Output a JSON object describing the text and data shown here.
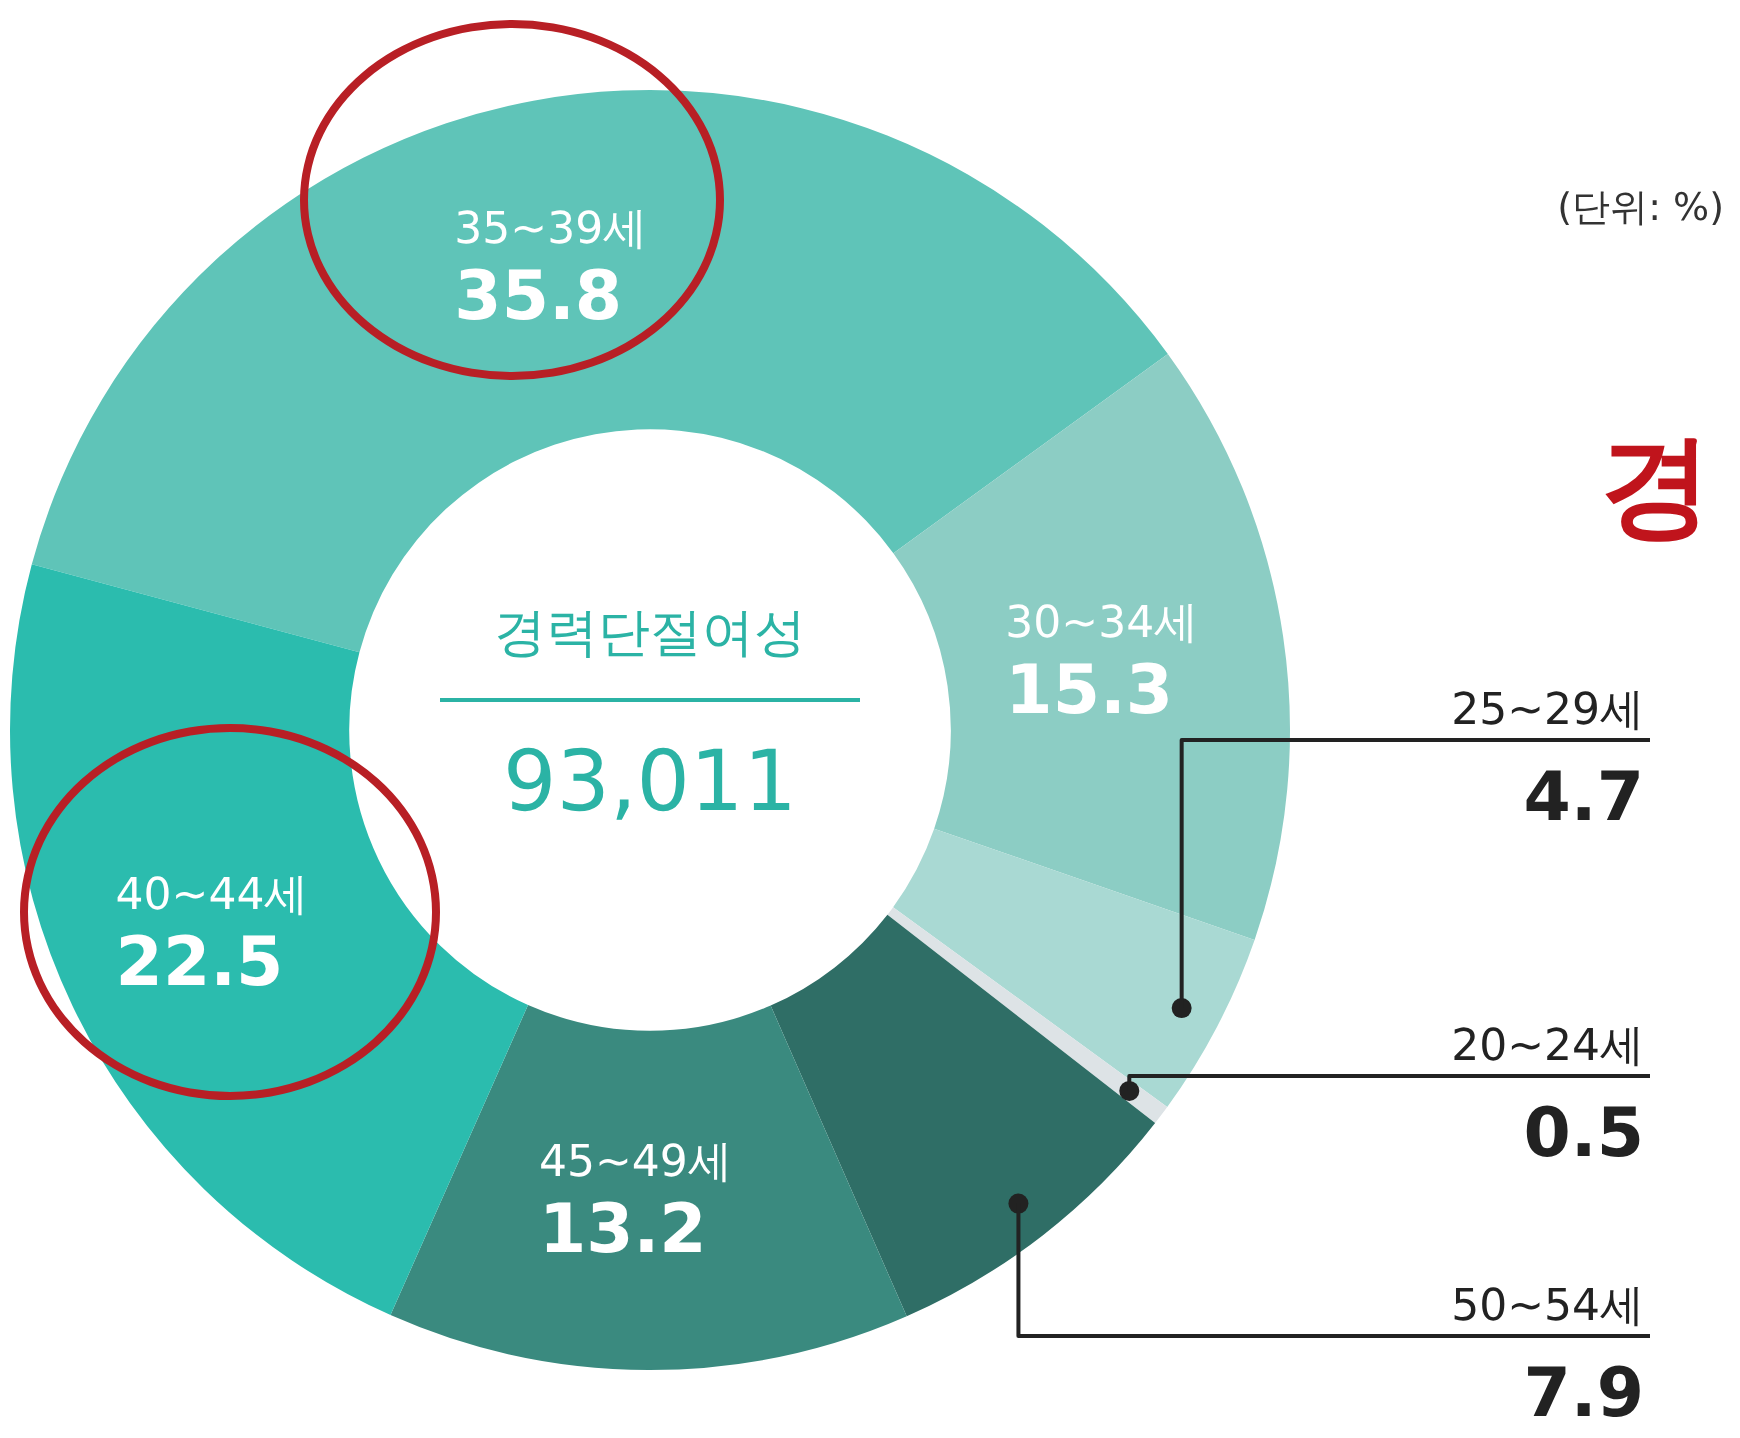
{
  "chart_data": {
    "type": "donut",
    "categories": [
      "35~39세",
      "30~34세",
      "25~29세",
      "20~24세",
      "50~54세",
      "45~49세",
      "40~44세"
    ],
    "values": [
      35.8,
      15.3,
      4.7,
      0.5,
      7.9,
      13.2,
      22.5
    ],
    "colors": [
      "#5fc4b8",
      "#8ccdc4",
      "#a9d9d3",
      "#dde3e6",
      "#2f6e66",
      "#3a8a7f",
      "#2bbcae"
    ],
    "data_labels": true,
    "legend": false,
    "annotations": [
      "경력단절여성",
      "93,011",
      "(단위: %)",
      "경"
    ]
  }
}
